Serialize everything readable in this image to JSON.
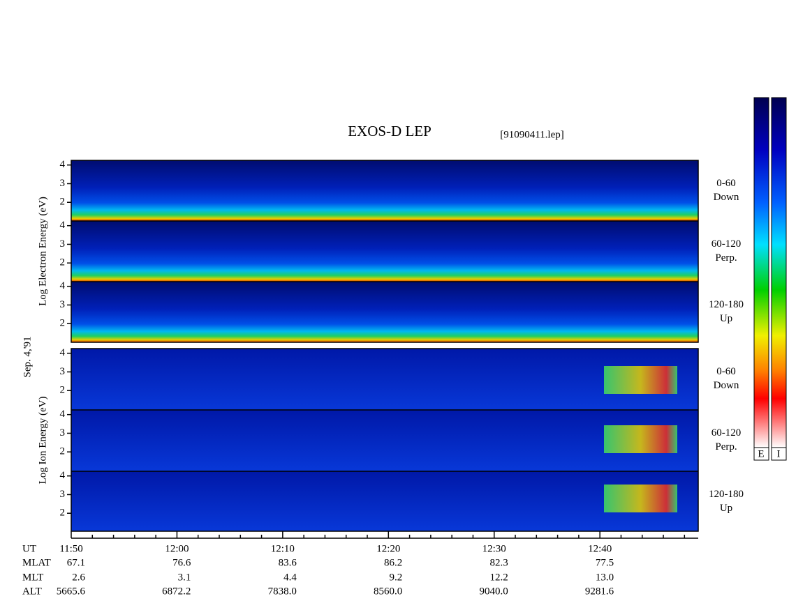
{
  "chart_data": {
    "type": "spectrogram",
    "title": "EXOS-D LEP",
    "subtitle": "[91090411.lep]",
    "date_label": "Sep. 4,'91",
    "groups": [
      {
        "ylabel": "Log  Electron  Energy (eV)",
        "panels": [
          {
            "angle": "0-60",
            "direction": "Down"
          },
          {
            "angle": "60-120",
            "direction": "Perp."
          },
          {
            "angle": "120-180",
            "direction": "Up"
          }
        ]
      },
      {
        "ylabel": "Log  Ion  Energy (eV)",
        "panels": [
          {
            "angle": "0-60",
            "direction": "Down"
          },
          {
            "angle": "60-120",
            "direction": "Perp."
          },
          {
            "angle": "120-180",
            "direction": "Up"
          }
        ]
      }
    ],
    "ylim": [
      1,
      4.25
    ],
    "yticks": [
      2,
      3,
      4
    ],
    "xlim": [
      0,
      59.3
    ],
    "xticks": [
      {
        "value": 0,
        "label": "11:50"
      },
      {
        "value": 10,
        "label": "12:00"
      },
      {
        "value": 20,
        "label": "12:10"
      },
      {
        "value": 30,
        "label": "12:20"
      },
      {
        "value": 40,
        "label": "12:30"
      },
      {
        "value": 50,
        "label": "12:40"
      }
    ],
    "xminorticks": [
      2,
      4,
      6,
      8,
      12,
      14,
      16,
      18,
      22,
      24,
      26,
      28,
      32,
      34,
      36,
      38,
      42,
      44,
      46,
      48,
      52,
      54,
      56,
      58
    ],
    "ephemeris": {
      "x_row_name": "UT",
      "rows": [
        {
          "name": "MLAT",
          "values": [
            "67.1",
            "76.6",
            "83.6",
            "86.2",
            "82.3",
            "77.5"
          ]
        },
        {
          "name": "MLT",
          "values": [
            "2.6",
            "3.1",
            "4.4",
            "9.2",
            "12.2",
            "13.0"
          ]
        },
        {
          "name": "ALT",
          "values": [
            "5665.6",
            "6872.2",
            "7838.0",
            "8560.0",
            "9040.0",
            "9281.6"
          ]
        }
      ]
    },
    "colorbar_labels": [
      "E",
      "I"
    ]
  }
}
